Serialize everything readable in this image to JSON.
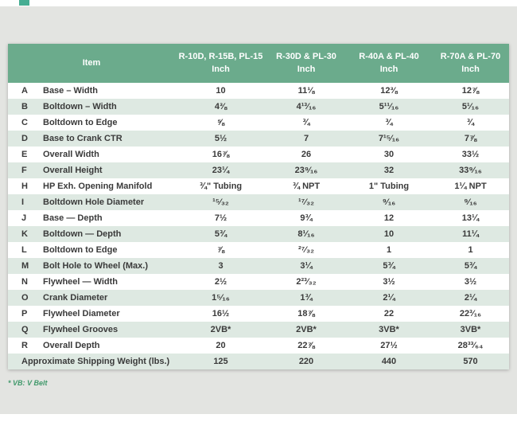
{
  "colors": {
    "panel_bg": "#e3e4e1",
    "header_green": "#6bab8c",
    "stripe_green": "#dee9e2",
    "text_dark": "#3a3a3a",
    "footnote_green": "#41996b",
    "decor_teal": "#46ad92",
    "table_bg": "#ffffff"
  },
  "footnote": "* VB: V Belt",
  "table": {
    "item_header": "Item",
    "columns": [
      {
        "model": "R-10D, R-15B, PL-15",
        "unit": "Inch"
      },
      {
        "model": "R-30D & PL-30",
        "unit": "Inch"
      },
      {
        "model": "R-40A & PL-40",
        "unit": "Inch"
      },
      {
        "model": "R-70A & PL-70",
        "unit": "Inch"
      }
    ],
    "rows": [
      {
        "key": "A",
        "item": "Base – Width",
        "values": [
          "10",
          "11⅛",
          "12⅜",
          "12⅞"
        ]
      },
      {
        "key": "B",
        "item": "Boltdown – Width",
        "values": [
          "4⅜",
          "4¹³⁄₁₆",
          "5¹¹⁄₁₆",
          "5¹⁄₁₆"
        ]
      },
      {
        "key": "C",
        "item": "Boltdown to Edge",
        "values": [
          "⅝",
          "¾",
          "¾",
          "¾"
        ]
      },
      {
        "key": "D",
        "item": "Base to Crank CTR",
        "values": [
          "5½",
          "7",
          "7¹⁵⁄₁₆",
          "7⅞"
        ]
      },
      {
        "key": "E",
        "item": "Overall Width",
        "values": [
          "16⅞",
          "26",
          "30",
          "33½"
        ]
      },
      {
        "key": "F",
        "item": "Overall Height",
        "values": [
          "23¼",
          "23⁹⁄₁₆",
          "32",
          "33⁹⁄₁₆"
        ]
      },
      {
        "key": "H",
        "item": "HP Exh. Opening Manifold",
        "values": [
          "¾\" Tubing",
          "¾ NPT",
          "1\" Tubing",
          "1¼ NPT"
        ]
      },
      {
        "key": "I",
        "item": "Boltdown Hole Diameter",
        "values": [
          "¹⁵⁄₃₂",
          "¹⁷⁄₃₂",
          "⁹⁄₁₆",
          "⁹⁄₁₆"
        ]
      },
      {
        "key": "J",
        "item": "Base — Depth",
        "values": [
          "7½",
          "9¾",
          "12",
          "13¼"
        ]
      },
      {
        "key": "K",
        "item": "Boltdown — Depth",
        "values": [
          "5¾",
          "8¹⁄₁₆",
          "10",
          "11¼"
        ]
      },
      {
        "key": "L",
        "item": "Boltdown to Edge",
        "values": [
          "⅞",
          "²⁷⁄₃₂",
          "1",
          "1"
        ]
      },
      {
        "key": "M",
        "item": "Bolt Hole to Wheel (Max.)",
        "values": [
          "3",
          "3¼",
          "5¾",
          "5¾"
        ]
      },
      {
        "key": "N",
        "item": "Flywheel — Width",
        "values": [
          "2½",
          "2²³⁄₃₂",
          "3½",
          "3½"
        ]
      },
      {
        "key": "O",
        "item": "Crank Diameter",
        "values": [
          "1⁵⁄₁₆",
          "1¾",
          "2¼",
          "2¼"
        ]
      },
      {
        "key": "P",
        "item": "Flywheel Diameter",
        "values": [
          "16½",
          "18⅞",
          "22",
          "22³⁄₁₆"
        ]
      },
      {
        "key": "Q",
        "item": "Flywheel Grooves",
        "values": [
          "2VB*",
          "2VB*",
          "3VB*",
          "3VB*"
        ]
      },
      {
        "key": "R",
        "item": "Overall Depth",
        "values": [
          "20",
          "22⅞",
          "27½",
          "28³³⁄₆₄"
        ]
      }
    ],
    "footer_row": {
      "item": "Approximate Shipping Weight (lbs.)",
      "values": [
        "125",
        "220",
        "440",
        "570"
      ]
    }
  }
}
